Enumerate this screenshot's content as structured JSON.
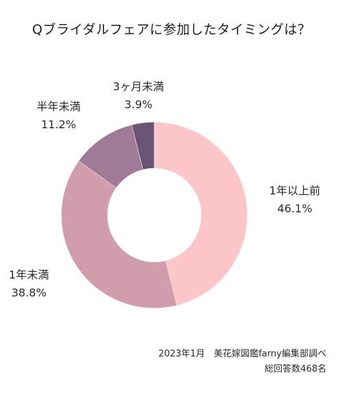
{
  "chart_data": {
    "type": "pie",
    "title": "Qブライダルフェアに参加したタイミングは？",
    "donut": true,
    "slices": [
      {
        "label": "1年以上前",
        "value": 46.1,
        "value_label": "46.1%",
        "color": "#fcc6c8"
      },
      {
        "label": "1年未満",
        "value": 38.8,
        "value_label": "38.8%",
        "color": "#d19dad"
      },
      {
        "label": "半年未満",
        "value": 11.2,
        "value_label": "11.2%",
        "color": "#a07b97"
      },
      {
        "label": "3ヶ月未満",
        "value": 3.9,
        "value_label": "3.9%",
        "color": "#6b5577"
      }
    ]
  },
  "source": {
    "line1": "2023年1月　美花嫁図鑑farny編集部調べ",
    "line2": "総回答数468名"
  }
}
